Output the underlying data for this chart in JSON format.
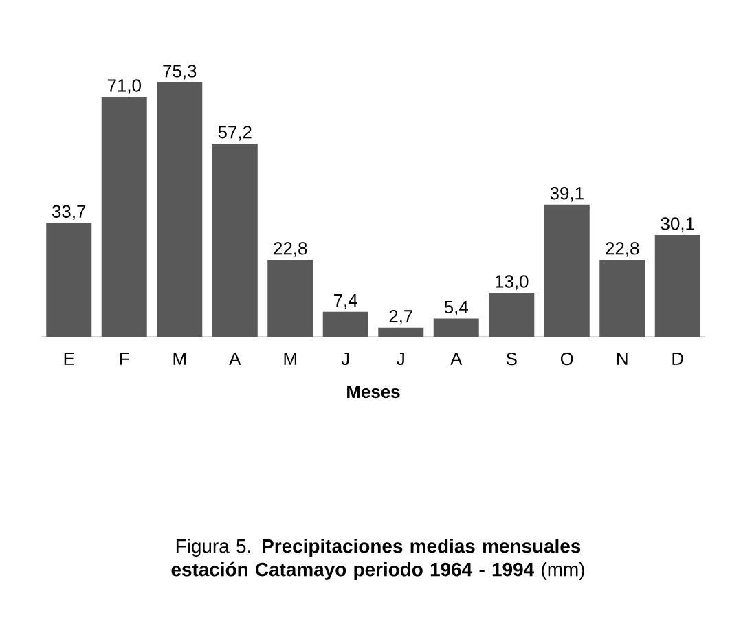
{
  "chart_data": {
    "type": "bar",
    "title": "Figura 5. **Precipitaciones medias mensuales estación Catamayo periodo 1964 - 1994** (mm)",
    "xlabel": "Meses",
    "categories": [
      "E",
      "F",
      "M",
      "A",
      "M",
      "J",
      "J",
      "A",
      "S",
      "O",
      "N",
      "D"
    ],
    "values": [
      33.7,
      71.0,
      75.3,
      57.2,
      22.8,
      7.4,
      2.7,
      5.4,
      13.0,
      39.1,
      22.8,
      30.1
    ],
    "value_labels": [
      "33,7",
      "71,0",
      "75,3",
      "57,2",
      "22,8",
      "7,4",
      "2,7",
      "5,4",
      "13,0",
      "39,1",
      "22,8",
      "30,1"
    ],
    "color": "#595959"
  }
}
